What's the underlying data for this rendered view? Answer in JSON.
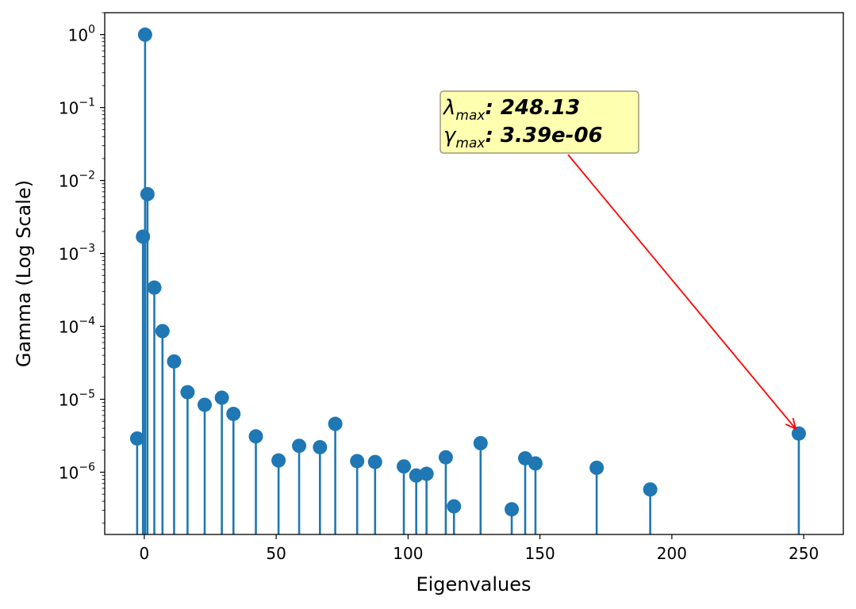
{
  "chart_data": {
    "type": "stem",
    "xlabel": "Eigenvalues",
    "ylabel": "Gamma (Log Scale)",
    "x_scale": "linear",
    "y_scale": "log",
    "xlim": [
      -15,
      265
    ],
    "ylim": [
      1.4e-07,
      2.0
    ],
    "x_ticks": [
      0,
      50,
      100,
      150,
      200,
      250
    ],
    "y_ticks": [
      {
        "value": 1,
        "base": "10",
        "exp": "0"
      },
      {
        "value": 0.1,
        "base": "10",
        "exp": "−1"
      },
      {
        "value": 0.01,
        "base": "10",
        "exp": "−2"
      },
      {
        "value": 0.001,
        "base": "10",
        "exp": "−3"
      },
      {
        "value": 0.0001,
        "base": "10",
        "exp": "−4"
      },
      {
        "value": 1e-05,
        "base": "10",
        "exp": "−5"
      },
      {
        "value": 1e-06,
        "base": "10",
        "exp": "−6"
      }
    ],
    "grid": false,
    "series": [
      {
        "color": "#1f77b4",
        "points": [
          {
            "x": -2.7,
            "y": 2.9e-06
          },
          {
            "x": -0.5,
            "y": 0.0017
          },
          {
            "x": 0.3,
            "y": 1.0
          },
          {
            "x": 1.2,
            "y": 0.0065
          },
          {
            "x": 3.8,
            "y": 0.00034
          },
          {
            "x": 6.9,
            "y": 8.6e-05
          },
          {
            "x": 11.3,
            "y": 3.3e-05
          },
          {
            "x": 16.4,
            "y": 1.25e-05
          },
          {
            "x": 22.9,
            "y": 8.4e-06
          },
          {
            "x": 29.4,
            "y": 1.05e-05
          },
          {
            "x": 33.8,
            "y": 6.3e-06
          },
          {
            "x": 42.3,
            "y": 3.1e-06
          },
          {
            "x": 50.9,
            "y": 1.45e-06
          },
          {
            "x": 58.7,
            "y": 2.3e-06
          },
          {
            "x": 66.6,
            "y": 2.2e-06
          },
          {
            "x": 72.4,
            "y": 4.6e-06
          },
          {
            "x": 80.7,
            "y": 1.42e-06
          },
          {
            "x": 87.5,
            "y": 1.38e-06
          },
          {
            "x": 98.4,
            "y": 1.2e-06
          },
          {
            "x": 103.1,
            "y": 9e-07
          },
          {
            "x": 107.0,
            "y": 9.5e-07
          },
          {
            "x": 114.3,
            "y": 1.6e-06
          },
          {
            "x": 117.4,
            "y": 3.4e-07
          },
          {
            "x": 127.5,
            "y": 2.5e-06
          },
          {
            "x": 139.3,
            "y": 3.1e-07
          },
          {
            "x": 144.4,
            "y": 1.55e-06
          },
          {
            "x": 148.3,
            "y": 1.32e-06
          },
          {
            "x": 171.5,
            "y": 1.15e-06
          },
          {
            "x": 191.8,
            "y": 5.8e-07
          },
          {
            "x": 248.13,
            "y": 3.39e-06
          }
        ]
      }
    ],
    "annotation": {
      "line1_symbol": "λ",
      "line1_sub": "max",
      "line1_value": ": 248.13",
      "line2_symbol": "γ",
      "line2_sub": "max",
      "line2_value": ": 3.39e-06",
      "target": {
        "x": 248.13,
        "y": 3.39e-06
      },
      "box_color": "#ffffb0",
      "box_edge_color": "#9a9a7a",
      "arrow_color": "#ff0000"
    }
  }
}
